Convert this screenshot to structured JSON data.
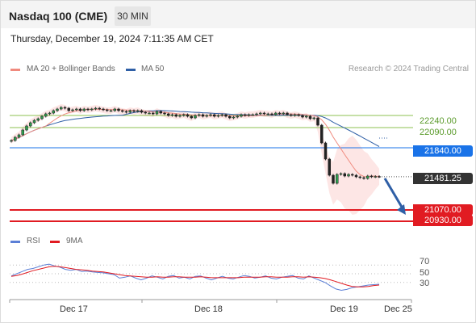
{
  "header": {
    "symbol": "Nasdaq 100 (CME)",
    "timeframe": "30 MIN"
  },
  "datetime": "Thursday, December 19, 2024 7:11:35 AM CET",
  "legend": {
    "ma20": "MA 20 + Bollinger Bands",
    "ma50": "MA 50",
    "credit": "Research © 2024 Trading Central"
  },
  "colors": {
    "ma20": "#f08a7e",
    "ma50": "#2f5fa6",
    "support": "#e11b22",
    "pivot": "#1a73e8",
    "resistance": "#8cc152",
    "rsi": "#5b7fd6",
    "rsi_ma": "#e11b22"
  },
  "levels": {
    "resistance": [
      "22240.00",
      "22090.00"
    ],
    "pivot": "21840.00",
    "last": "21481.25",
    "support": [
      "21070.00",
      "20930.00"
    ]
  },
  "rsi_panel": {
    "legend_rsi": "RSI",
    "legend_ma": "9MA",
    "ticks": [
      "70",
      "50",
      "30"
    ]
  },
  "x_axis": [
    "Dec 17",
    "Dec 18",
    "Dec 19",
    "Dec 25"
  ],
  "chart_data": {
    "type": "candlestick",
    "instrument": "Nasdaq 100 (CME)",
    "interval": "30 MIN",
    "close": [
      21930,
      21970,
      22000,
      22060,
      22110,
      22150,
      22180,
      22200,
      22230,
      22260,
      22270,
      22300,
      22320,
      22340,
      22330,
      22300,
      22310,
      22320,
      22300,
      22320,
      22310,
      22320,
      22330,
      22320,
      22310,
      22300,
      22300,
      22320,
      22300,
      22290,
      22280,
      22300,
      22290,
      22300,
      22280,
      22270,
      22270,
      22260,
      22290,
      22270,
      22260,
      22240,
      22250,
      22230,
      22240,
      22250,
      22230,
      22210,
      22240,
      22250,
      22230,
      22240,
      22250,
      22230,
      22240,
      22250,
      22230,
      22210,
      22220,
      22230,
      22250,
      22240,
      22250,
      22250,
      22260,
      22270,
      22260,
      22260,
      22250,
      22270,
      22260,
      22270,
      22250,
      22240,
      22250,
      22240,
      22220,
      22230,
      22200,
      22210,
      22120,
      21900,
      21700,
      21500,
      21400,
      21510,
      21520,
      21490,
      21510,
      21500,
      21480,
      21470,
      21460,
      21490,
      21480,
      21485,
      21481.25
    ],
    "ma50_end": 21960,
    "ma20_end": 21520,
    "resistance": [
      22240,
      22090
    ],
    "pivot": 21840,
    "last": 21481.25,
    "support": [
      21070,
      20930
    ],
    "projection_target": 21070,
    "price_range": [
      20850,
      22750
    ],
    "rsi": [
      45,
      50,
      55,
      60,
      62,
      66,
      70,
      72,
      68,
      65,
      60,
      58,
      60,
      55,
      56,
      54,
      53,
      52,
      50,
      48,
      40,
      42,
      45,
      40,
      36,
      40,
      45,
      42,
      38,
      44,
      46,
      40,
      42,
      38,
      44,
      45,
      40,
      36,
      40,
      44,
      40,
      38,
      42,
      46,
      44,
      40,
      42,
      45,
      40,
      38,
      42,
      44,
      46,
      40,
      38,
      45,
      40,
      35,
      30,
      22,
      15,
      12,
      14,
      18,
      20,
      22,
      24,
      25,
      26
    ],
    "rsi_ma": [
      44,
      46,
      49,
      53,
      57,
      60,
      63,
      66,
      67,
      66,
      64,
      62,
      60,
      59,
      58,
      56,
      55,
      54,
      52,
      50,
      48,
      46,
      45,
      44,
      43,
      42,
      42,
      43,
      42,
      42,
      43,
      43,
      42,
      42,
      42,
      43,
      42,
      41,
      41,
      41,
      41,
      41,
      41,
      42,
      42,
      42,
      42,
      43,
      43,
      42,
      42,
      42,
      43,
      43,
      42,
      43,
      42,
      41,
      39,
      36,
      32,
      28,
      24,
      21,
      20,
      20,
      21,
      23,
      24
    ],
    "rsi_levels": [
      70,
      50,
      30
    ]
  }
}
